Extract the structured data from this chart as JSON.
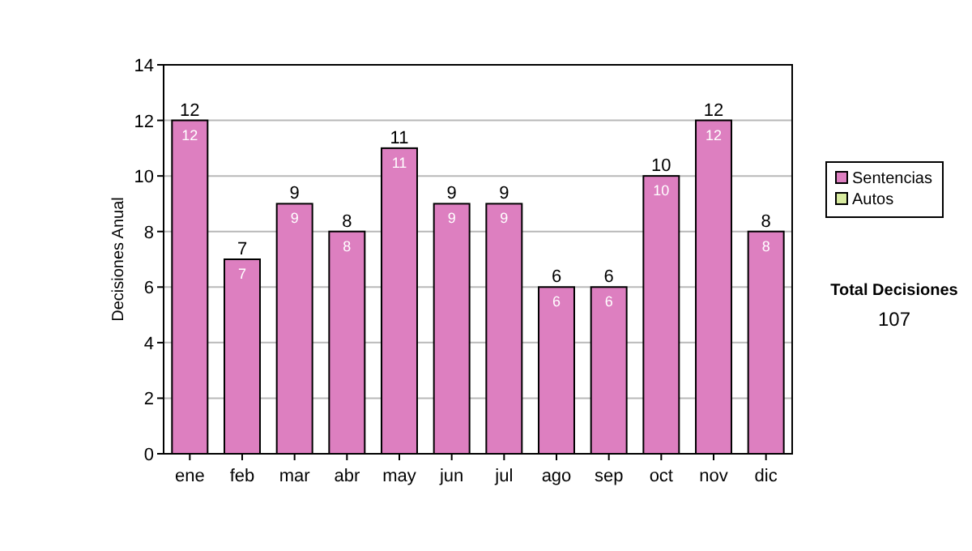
{
  "chart_data": {
    "type": "bar",
    "stacked": true,
    "ylabel": "Decisiones Anual",
    "categories": [
      "ene",
      "feb",
      "mar",
      "abr",
      "may",
      "jun",
      "jul",
      "ago",
      "sep",
      "oct",
      "nov",
      "dic"
    ],
    "series": [
      {
        "name": "Sentencias",
        "color": "#dd7fc0",
        "values": [
          12,
          7,
          9,
          8,
          11,
          9,
          9,
          6,
          6,
          10,
          12,
          8
        ],
        "value_labels": [
          "12",
          "7",
          "9",
          "8",
          "11",
          "9",
          "9",
          "6",
          "6",
          "10",
          "12",
          "8"
        ]
      },
      {
        "name": "Autos",
        "color": "#d8eba0",
        "values": [
          0,
          0,
          0,
          0,
          0,
          0,
          0,
          0,
          0,
          0,
          0,
          0
        ]
      }
    ],
    "totals": [
      "12",
      "7",
      "9",
      "8",
      "11",
      "9",
      "9",
      "6",
      "6",
      "10",
      "12",
      "8"
    ],
    "ylim": [
      0,
      14
    ],
    "yticks": [
      0,
      2,
      4,
      6,
      8,
      10,
      12,
      14
    ],
    "grid": "y",
    "legend": "right",
    "annotations": [
      "Total Decisiones",
      "107"
    ]
  }
}
